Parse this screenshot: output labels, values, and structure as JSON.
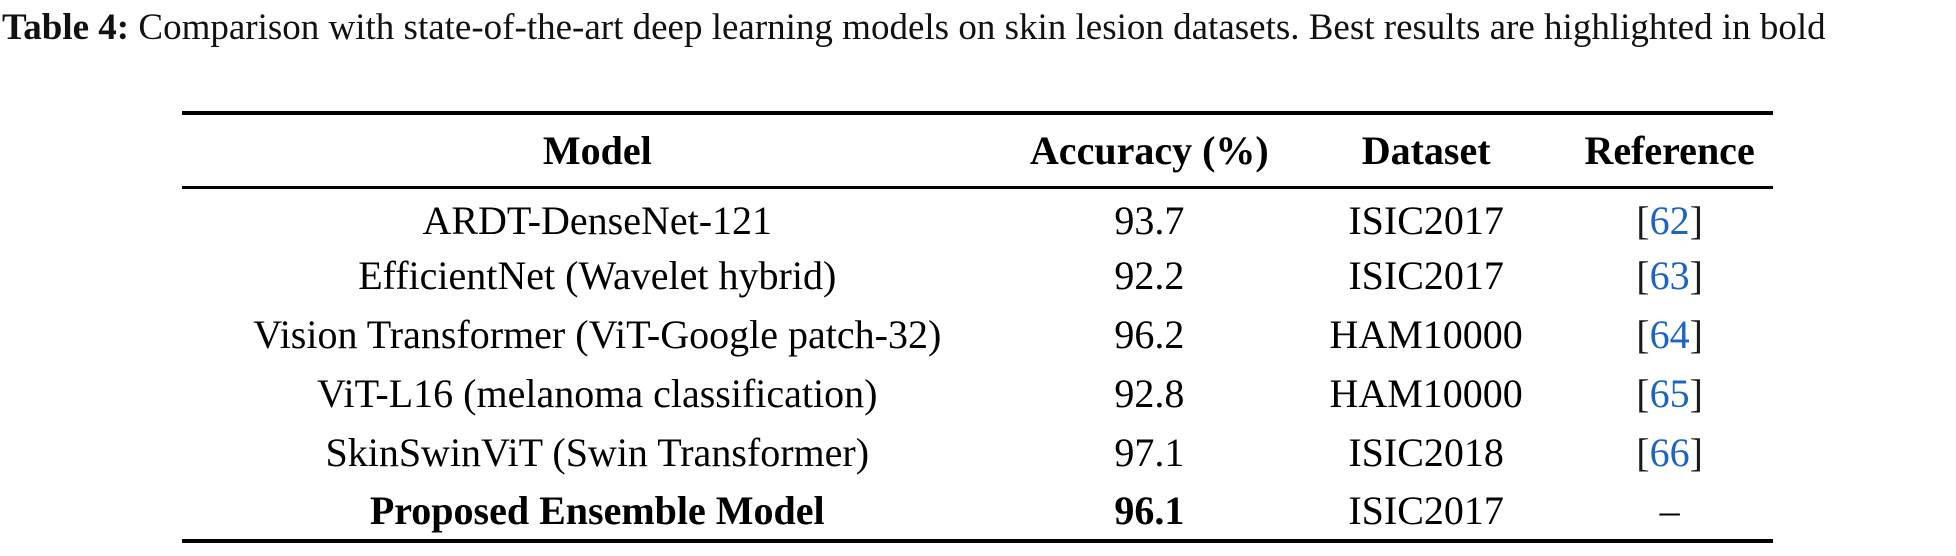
{
  "caption": {
    "label": "Table 4:",
    "text": " Comparison with state-of-the-art deep learning models on skin lesion datasets. Best results are highlighted in bold"
  },
  "table": {
    "columns": [
      "Model",
      "Accuracy (%)",
      "Dataset",
      "Reference"
    ],
    "rows": [
      {
        "model": "ARDT-DenseNet-121",
        "accuracy": "93.7",
        "dataset": "ISIC2017",
        "ref_open": "[",
        "ref_number": "62",
        "ref_close": "]"
      },
      {
        "model": "EfficientNet (Wavelet hybrid)",
        "accuracy": "92.2",
        "dataset": "ISIC2017",
        "ref_open": "[",
        "ref_number": "63",
        "ref_close": "]"
      },
      {
        "model": "Vision Transformer (ViT-Google patch-32)",
        "accuracy": "96.2",
        "dataset": "HAM10000",
        "ref_open": "[",
        "ref_number": "64",
        "ref_close": "]"
      },
      {
        "model": "ViT-L16 (melanoma classification)",
        "accuracy": "92.8",
        "dataset": "HAM10000",
        "ref_open": "[",
        "ref_number": "65",
        "ref_close": "]"
      },
      {
        "model": "SkinSwinViT (Swin Transformer)",
        "accuracy": "97.1",
        "dataset": "ISIC2018",
        "ref_open": "[",
        "ref_number": "66",
        "ref_close": "]"
      },
      {
        "model": "Proposed Ensemble Model",
        "accuracy": "96.1",
        "dataset": "ISIC2017",
        "ref_dash": "–"
      }
    ]
  },
  "colors": {
    "reference_link_blue": "#1c64c4",
    "text": "#000000"
  }
}
